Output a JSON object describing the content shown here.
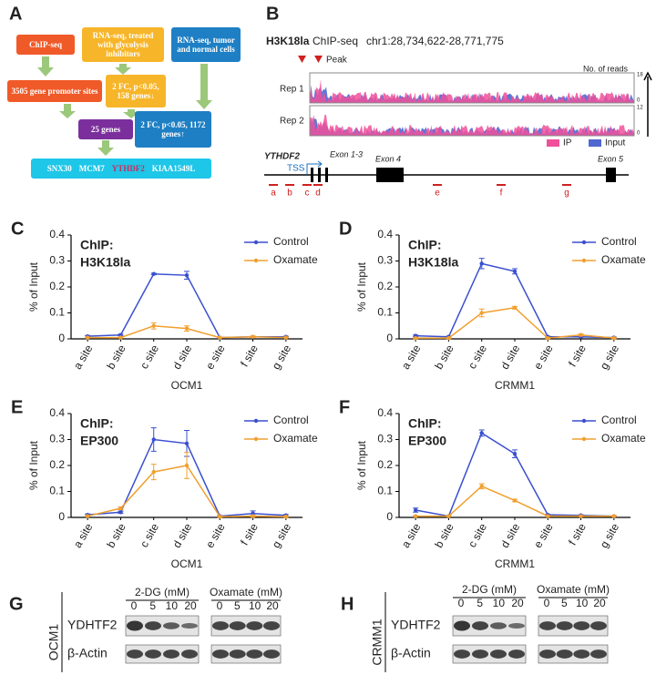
{
  "panel_a": {
    "label": "A",
    "boxes": {
      "chipseq": "ChIP-seq",
      "rnaseq_treated": "RNA-seq, treated with glycolysis inhibitors",
      "rnaseq_tumor": "RNA-seq, tumor and normal cells",
      "promoter_sites": "3505 gene promoter sites",
      "down_genes": "2 FC, p<0.05, 158 genes↓",
      "overlap": "25 genes",
      "up_genes": "2 FC, p<0.05, 1172 genes↑"
    },
    "genes": [
      "SNX30",
      "MCM7",
      "YTHDF2",
      "KIAA1549L"
    ]
  },
  "panel_b": {
    "label": "B",
    "title_mark": "H3K18la",
    "title_rest": "ChIP-seq",
    "locus": "chr1:28,734,622-28,771,775",
    "peak": "Peak",
    "reads": "No. of reads",
    "tracks": [
      {
        "name": "Rep 1",
        "max": "18",
        "min": "0"
      },
      {
        "name": "Rep 2",
        "max": "12",
        "min": "0"
      }
    ],
    "legend": [
      "IP",
      "Input"
    ],
    "gene": "YTHDF2",
    "tss": "TSS",
    "exons": [
      "Exon 1-3",
      "Exon 4",
      "Exon 5"
    ],
    "sites": [
      "a",
      "b",
      "c",
      "d",
      "e",
      "f",
      "g"
    ]
  },
  "chart_data": [
    {
      "type": "line",
      "label": "C",
      "annotation": [
        "ChIP:",
        "H3K18la"
      ],
      "ylabel": "% of Input",
      "xlabel": "OCM1",
      "categories": [
        "a site",
        "b site",
        "c site",
        "d site",
        "e site",
        "f site",
        "g site"
      ],
      "ylim": [
        0,
        0.4
      ],
      "yticks": [
        0,
        0.1,
        0.2,
        0.3,
        0.4
      ],
      "series": [
        {
          "name": "Control",
          "color": "#3a4fd0",
          "values": [
            0.01,
            0.015,
            0.25,
            0.245,
            0.005,
            0.008,
            0.008
          ],
          "errors": [
            0.003,
            0.003,
            0.003,
            0.015,
            0.002,
            0.002,
            0.002
          ]
        },
        {
          "name": "Oxamate",
          "color": "#f0a030",
          "values": [
            0.005,
            0.005,
            0.05,
            0.04,
            0.005,
            0.008,
            0.005
          ],
          "errors": [
            0.002,
            0.002,
            0.012,
            0.01,
            0.002,
            0.003,
            0.002
          ]
        }
      ]
    },
    {
      "type": "line",
      "label": "D",
      "annotation": [
        "ChIP:",
        "H3K18la"
      ],
      "ylabel": "% of Input",
      "xlabel": "CRMM1",
      "categories": [
        "a site",
        "b site",
        "c site",
        "d site",
        "e site",
        "f site",
        "g site"
      ],
      "ylim": [
        0,
        0.4
      ],
      "yticks": [
        0,
        0.1,
        0.2,
        0.3,
        0.4
      ],
      "series": [
        {
          "name": "Control",
          "color": "#3a4fd0",
          "values": [
            0.012,
            0.008,
            0.29,
            0.26,
            0.008,
            0.008,
            0.005
          ],
          "errors": [
            0.003,
            0.002,
            0.02,
            0.01,
            0.002,
            0.002,
            0.002
          ]
        },
        {
          "name": "Oxamate",
          "color": "#f0a030",
          "values": [
            0.003,
            0.003,
            0.1,
            0.12,
            0.003,
            0.015,
            0.003
          ],
          "errors": [
            0.002,
            0.002,
            0.015,
            0.005,
            0.002,
            0.004,
            0.002
          ]
        }
      ]
    },
    {
      "type": "line",
      "label": "E",
      "annotation": [
        "ChIP:",
        "EP300"
      ],
      "ylabel": "% of Input",
      "xlabel": "OCM1",
      "categories": [
        "a site",
        "b site",
        "c site",
        "d site",
        "e site",
        "f site",
        "g site"
      ],
      "ylim": [
        0,
        0.4
      ],
      "yticks": [
        0,
        0.1,
        0.2,
        0.3,
        0.4
      ],
      "series": [
        {
          "name": "Control",
          "color": "#3a4fd0",
          "values": [
            0.01,
            0.02,
            0.3,
            0.285,
            0.005,
            0.015,
            0.008
          ],
          "errors": [
            0.003,
            0.004,
            0.045,
            0.05,
            0.002,
            0.01,
            0.003
          ]
        },
        {
          "name": "Oxamate",
          "color": "#f0a030",
          "values": [
            0.005,
            0.035,
            0.175,
            0.2,
            0.003,
            0.005,
            0.003
          ],
          "errors": [
            0.002,
            0.005,
            0.03,
            0.05,
            0.002,
            0.003,
            0.002
          ]
        }
      ]
    },
    {
      "type": "line",
      "label": "F",
      "annotation": [
        "ChIP:",
        "EP300"
      ],
      "ylabel": "% of Input",
      "xlabel": "CRMM1",
      "categories": [
        "a site",
        "b site",
        "c site",
        "d site",
        "e site",
        "f site",
        "g site"
      ],
      "ylim": [
        0,
        0.4
      ],
      "yticks": [
        0,
        0.1,
        0.2,
        0.3,
        0.4
      ],
      "series": [
        {
          "name": "Control",
          "color": "#3a4fd0",
          "values": [
            0.028,
            0.005,
            0.325,
            0.245,
            0.01,
            0.008,
            0.005
          ],
          "errors": [
            0.008,
            0.002,
            0.012,
            0.015,
            0.002,
            0.002,
            0.002
          ]
        },
        {
          "name": "Oxamate",
          "color": "#f0a030",
          "values": [
            0.005,
            0.005,
            0.12,
            0.065,
            0.005,
            0.005,
            0.005
          ],
          "errors": [
            0.002,
            0.002,
            0.01,
            0.005,
            0.002,
            0.002,
            0.002
          ]
        }
      ]
    }
  ],
  "panel_g": {
    "label": "G",
    "cell": "OCM1",
    "treatments": [
      "2-DG (mM)",
      "Oxamate (mM)"
    ],
    "doses": [
      "0",
      "5",
      "10",
      "20"
    ],
    "proteins": [
      "YDHTF2",
      "β-Actin"
    ]
  },
  "panel_h": {
    "label": "H",
    "cell": "CRMM1",
    "treatments": [
      "2-DG (mM)",
      "Oxamate (mM)"
    ],
    "doses": [
      "0",
      "5",
      "10",
      "20"
    ],
    "proteins": [
      "YDHTF2",
      "β-Actin"
    ]
  }
}
